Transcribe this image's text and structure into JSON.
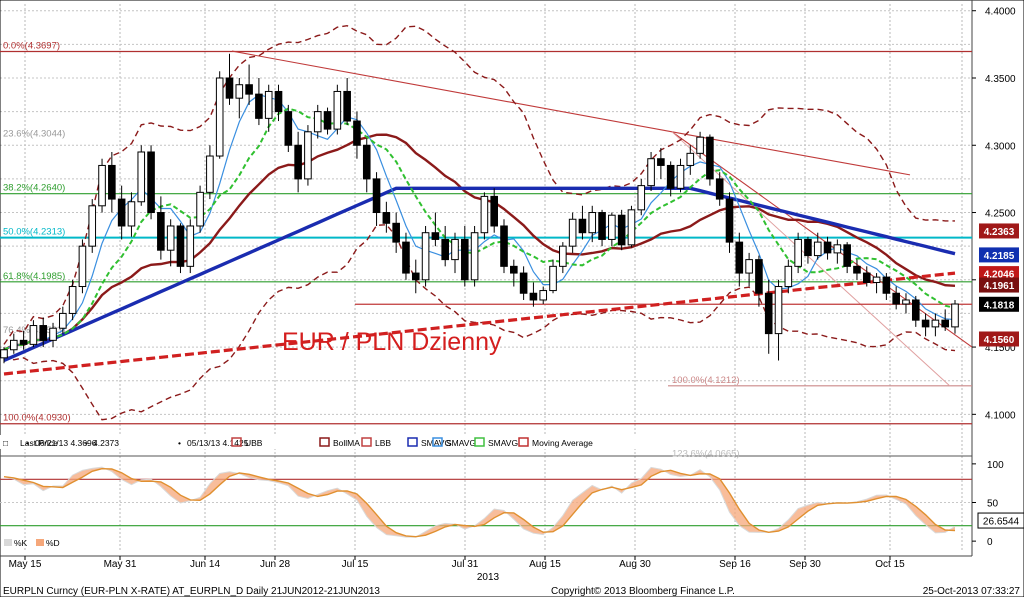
{
  "chart_data": {
    "type": "candlestick",
    "title": "EUR / PLN Dzienny",
    "y_axis": {
      "side": "right",
      "ticks": [
        "4.4000",
        "4.3500",
        "4.3000",
        "4.2500",
        "4.2000",
        "4.1500",
        "4.1000"
      ],
      "ylim": [
        4.072,
        4.405
      ]
    },
    "x_axis": {
      "ticks": [
        "May 15",
        "May 31",
        "Jun 14",
        "Jun 28",
        "Jul 15",
        "Jul 31",
        "Aug 15",
        "Aug 30",
        "Sep 16",
        "Sep 30",
        "Oct 15"
      ],
      "year_label": "2013"
    },
    "grid": true,
    "fibonacci": [
      {
        "label": "0.0%(4.3697)",
        "value": 4.3697,
        "color": "#b03030"
      },
      {
        "label": "23.6%(4.3044)",
        "value": 4.3044,
        "color": "#999999"
      },
      {
        "label": "38.2%(4.2640)",
        "value": 4.264,
        "color": "#2e9e2e"
      },
      {
        "label": "50.0%(4.2313)",
        "value": 4.2313,
        "color": "#00b8c8"
      },
      {
        "label": "61.8%(4.1985)",
        "value": 4.1985,
        "color": "#2e9e2e"
      },
      {
        "label": "76.4%(4.1583)",
        "value": 4.1583,
        "color": "#999999"
      },
      {
        "label": "100.0%(4.0930)",
        "value": 4.093,
        "color": "#b03030"
      },
      {
        "label": "100.0%(4.1212)",
        "value": 4.1212,
        "color": "#cc8888"
      },
      {
        "label": "123.6%(4.0665)",
        "value": 4.0665,
        "color": "#bbbbbb"
      }
    ],
    "price_tags": [
      {
        "label": "4.2363",
        "value": 4.2363,
        "color": "#a01818"
      },
      {
        "label": "4.2185",
        "value": 4.2185,
        "color": "#1030b0"
      },
      {
        "label": "4.2046",
        "value": 4.2046,
        "color": "#c01818"
      },
      {
        "label": "4.1961",
        "value": 4.1961,
        "color": "#7a1010"
      },
      {
        "label": "4.1818",
        "value": 4.1818,
        "color": "#000000"
      },
      {
        "label": "4.1560",
        "value": 4.156,
        "color": "#a01818"
      }
    ],
    "candles": [
      [
        4.142,
        4.15,
        4.138,
        4.148
      ],
      [
        4.148,
        4.16,
        4.145,
        4.155
      ],
      [
        4.155,
        4.162,
        4.148,
        4.152
      ],
      [
        4.152,
        4.17,
        4.15,
        4.166
      ],
      [
        4.166,
        4.172,
        4.15,
        4.155
      ],
      [
        4.155,
        4.168,
        4.15,
        4.164
      ],
      [
        4.164,
        4.18,
        4.16,
        4.175
      ],
      [
        4.175,
        4.2,
        4.17,
        4.195
      ],
      [
        4.195,
        4.23,
        4.19,
        4.225
      ],
      [
        4.225,
        4.26,
        4.22,
        4.255
      ],
      [
        4.255,
        4.29,
        4.25,
        4.285
      ],
      [
        4.285,
        4.295,
        4.25,
        4.26
      ],
      [
        4.26,
        4.27,
        4.23,
        4.24
      ],
      [
        4.24,
        4.265,
        4.232,
        4.258
      ],
      [
        4.258,
        4.3,
        4.255,
        4.295
      ],
      [
        4.295,
        4.3,
        4.245,
        4.25
      ],
      [
        4.25,
        4.262,
        4.215,
        4.222
      ],
      [
        4.222,
        4.245,
        4.21,
        4.24
      ],
      [
        4.24,
        4.242,
        4.205,
        4.21
      ],
      [
        4.21,
        4.245,
        4.205,
        4.24
      ],
      [
        4.24,
        4.27,
        4.235,
        4.265
      ],
      [
        4.265,
        4.3,
        4.26,
        4.292
      ],
      [
        4.292,
        4.355,
        4.29,
        4.35
      ],
      [
        4.35,
        4.368,
        4.33,
        4.335
      ],
      [
        4.335,
        4.35,
        4.32,
        4.345
      ],
      [
        4.345,
        4.36,
        4.33,
        4.338
      ],
      [
        4.338,
        4.35,
        4.315,
        4.32
      ],
      [
        4.32,
        4.345,
        4.31,
        4.34
      ],
      [
        4.34,
        4.345,
        4.318,
        4.325
      ],
      [
        4.325,
        4.33,
        4.295,
        4.3
      ],
      [
        4.3,
        4.31,
        4.265,
        4.275
      ],
      [
        4.275,
        4.315,
        4.27,
        4.31
      ],
      [
        4.31,
        4.33,
        4.305,
        4.325
      ],
      [
        4.325,
        4.328,
        4.308,
        4.312
      ],
      [
        4.312,
        4.345,
        4.308,
        4.34
      ],
      [
        4.34,
        4.35,
        4.315,
        4.318
      ],
      [
        4.318,
        4.325,
        4.29,
        4.3
      ],
      [
        4.3,
        4.305,
        4.265,
        4.275
      ],
      [
        4.275,
        4.28,
        4.24,
        4.25
      ],
      [
        4.25,
        4.258,
        4.235,
        4.242
      ],
      [
        4.242,
        4.25,
        4.22,
        4.228
      ],
      [
        4.228,
        4.235,
        4.2,
        4.205
      ],
      [
        4.205,
        4.215,
        4.19,
        4.2
      ],
      [
        4.2,
        4.24,
        4.195,
        4.235
      ],
      [
        4.235,
        4.25,
        4.225,
        4.23
      ],
      [
        4.23,
        4.24,
        4.21,
        4.215
      ],
      [
        4.215,
        4.235,
        4.205,
        4.23
      ],
      [
        4.23,
        4.24,
        4.195,
        4.2
      ],
      [
        4.2,
        4.24,
        4.195,
        4.235
      ],
      [
        4.235,
        4.265,
        4.23,
        4.262
      ],
      [
        4.262,
        4.268,
        4.235,
        4.24
      ],
      [
        4.24,
        4.245,
        4.205,
        4.21
      ],
      [
        4.21,
        4.215,
        4.195,
        4.205
      ],
      [
        4.205,
        4.21,
        4.185,
        4.19
      ],
      [
        4.19,
        4.198,
        4.18,
        4.185
      ],
      [
        4.185,
        4.195,
        4.182,
        4.192
      ],
      [
        4.192,
        4.215,
        4.19,
        4.21
      ],
      [
        4.21,
        4.228,
        4.205,
        4.225
      ],
      [
        4.225,
        4.25,
        4.22,
        4.245
      ],
      [
        4.245,
        4.255,
        4.23,
        4.235
      ],
      [
        4.235,
        4.255,
        4.228,
        4.25
      ],
      [
        4.25,
        4.252,
        4.225,
        4.23
      ],
      [
        4.23,
        4.25,
        4.225,
        4.248
      ],
      [
        4.248,
        4.252,
        4.222,
        4.226
      ],
      [
        4.226,
        4.255,
        4.224,
        4.252
      ],
      [
        4.252,
        4.275,
        4.248,
        4.27
      ],
      [
        4.27,
        4.295,
        4.266,
        4.29
      ],
      [
        4.29,
        4.298,
        4.275,
        4.285
      ],
      [
        4.285,
        4.288,
        4.262,
        4.268
      ],
      [
        4.268,
        4.29,
        4.265,
        4.285
      ],
      [
        4.285,
        4.3,
        4.278,
        4.294
      ],
      [
        4.294,
        4.31,
        4.29,
        4.306
      ],
      [
        4.306,
        4.308,
        4.27,
        4.275
      ],
      [
        4.275,
        4.28,
        4.255,
        4.26
      ],
      [
        4.26,
        4.265,
        4.22,
        4.228
      ],
      [
        4.228,
        4.235,
        4.195,
        4.205
      ],
      [
        4.205,
        4.22,
        4.195,
        4.215
      ],
      [
        4.215,
        4.218,
        4.18,
        4.19
      ],
      [
        4.19,
        4.2,
        4.145,
        4.16
      ],
      [
        4.16,
        4.2,
        4.14,
        4.195
      ],
      [
        4.195,
        4.215,
        4.19,
        4.21
      ],
      [
        4.21,
        4.235,
        4.205,
        4.23
      ],
      [
        4.23,
        4.232,
        4.212,
        4.218
      ],
      [
        4.218,
        4.235,
        4.215,
        4.228
      ],
      [
        4.228,
        4.232,
        4.215,
        4.22
      ],
      [
        4.22,
        4.23,
        4.212,
        4.226
      ],
      [
        4.226,
        4.228,
        4.205,
        4.21
      ],
      [
        4.21,
        4.215,
        4.2,
        4.205
      ],
      [
        4.205,
        4.21,
        4.195,
        4.198
      ],
      [
        4.198,
        4.205,
        4.19,
        4.202
      ],
      [
        4.202,
        4.205,
        4.185,
        4.19
      ],
      [
        4.19,
        4.195,
        4.178,
        4.182
      ],
      [
        4.182,
        4.19,
        4.175,
        4.185
      ],
      [
        4.185,
        4.188,
        4.165,
        4.17
      ],
      [
        4.17,
        4.175,
        4.158,
        4.165
      ],
      [
        4.165,
        4.175,
        4.158,
        4.17
      ],
      [
        4.17,
        4.178,
        4.162,
        4.165
      ],
      [
        4.165,
        4.185,
        4.16,
        4.182
      ]
    ],
    "indicator": {
      "ticks": [
        "100",
        "50",
        "0"
      ],
      "ylim": [
        -5,
        105
      ],
      "levels": [
        80,
        20
      ],
      "current_value": "26.6544",
      "legend": [
        "%K",
        "%D"
      ]
    }
  },
  "legend": {
    "items": [
      {
        "icon": "candle-glyph",
        "label": "Last Price"
      },
      {
        "icon": "high-marker",
        "label": "06/21/13 4.3696"
      },
      {
        "icon": "cross-marker",
        "label": "4.2373"
      },
      {
        "icon": "low-marker",
        "label": "05/13/13 4.1425"
      },
      {
        "icon": "line-swatch",
        "color": "#c04040",
        "label": "UBB"
      },
      {
        "icon": "line-swatch",
        "color": "#8b1a1a",
        "label": "BollMA"
      },
      {
        "icon": "line-swatch",
        "color": "#c04040",
        "label": "LBB"
      },
      {
        "icon": "line-swatch",
        "color": "#1a2cb0",
        "label": "SMAVG"
      },
      {
        "icon": "line-swatch",
        "color": "#3a8fe0",
        "label": "SMAVG"
      },
      {
        "icon": "line-swatch",
        "color": "#40c040",
        "label": "SMAVG"
      },
      {
        "icon": "line-swatch",
        "color": "#c03030",
        "label": "Moving Average"
      }
    ]
  },
  "footer": {
    "left": "EURPLN Curncy (EUR-PLN X-RATE) AT_EURPLN_D  Daily 21JUN2012-21JUN2013",
    "center": "Copyright© 2013 Bloomberg Finance L.P.",
    "right": "25-Oct-2013 07:33:27"
  }
}
